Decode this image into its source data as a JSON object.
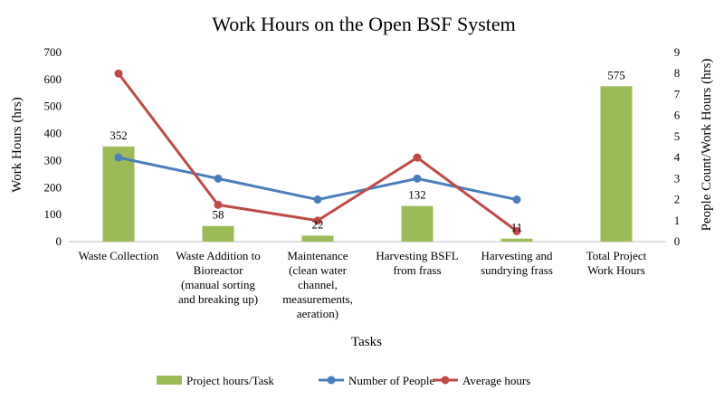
{
  "chart_data": {
    "type": "bar+line",
    "title": "Work Hours on the Open BSF System",
    "xlabel": "Tasks",
    "ylabel": "Work Hours (hrs)",
    "y2label": "People Count/Work Hours (hrs)",
    "ylim": [
      0,
      700
    ],
    "y2lim": [
      0,
      9
    ],
    "yticks": [
      0,
      100,
      200,
      300,
      400,
      500,
      600,
      700
    ],
    "y2ticks": [
      0,
      1,
      2,
      3,
      4,
      5,
      6,
      7,
      8,
      9
    ],
    "categories": [
      [
        "Waste Collection"
      ],
      [
        "Waste Addition to",
        "Bioreactor",
        "(manual sorting",
        "and breaking up)"
      ],
      [
        "Maintenance",
        "(clean water",
        "channel,",
        "measurements,",
        "aeration)"
      ],
      [
        "Harvesting BSFL",
        "from frass"
      ],
      [
        "Harvesting and",
        "sundrying frass"
      ],
      [
        "Total Project",
        "Work Hours"
      ]
    ],
    "series": [
      {
        "name": "Project hours/Task",
        "type": "bar",
        "axis": "left",
        "color": "#9bbb59",
        "values": [
          352,
          58,
          22,
          132,
          11,
          575
        ],
        "labels": [
          "352",
          "58",
          "22",
          "132",
          "11",
          "575"
        ]
      },
      {
        "name": "Number of People",
        "type": "line",
        "axis": "right",
        "color": "#4a7ebb",
        "values": [
          4,
          3,
          2,
          3,
          2,
          null
        ]
      },
      {
        "name": "Average hours",
        "type": "line",
        "axis": "right",
        "color": "#be4b48",
        "values": [
          8,
          1.75,
          1,
          4,
          0.5,
          null
        ]
      }
    ],
    "grid": false,
    "legend": "bottom"
  }
}
